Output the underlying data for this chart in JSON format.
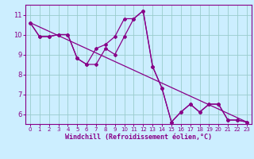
{
  "xlabel": "Windchill (Refroidissement éolien,°C)",
  "bg_color": "#cceeff",
  "line_color": "#880088",
  "grid_color": "#99cccc",
  "xmin": -0.5,
  "xmax": 23.5,
  "ymin": 5.5,
  "ymax": 11.5,
  "yticks": [
    6,
    7,
    8,
    9,
    10,
    11
  ],
  "xticks": [
    0,
    1,
    2,
    3,
    4,
    5,
    6,
    7,
    8,
    9,
    10,
    11,
    12,
    13,
    14,
    15,
    16,
    17,
    18,
    19,
    20,
    21,
    22,
    23
  ],
  "series1_x": [
    0,
    1,
    2,
    3,
    4,
    5,
    6,
    7,
    8,
    9,
    10,
    11,
    12,
    13,
    14,
    15,
    16,
    17,
    18,
    19,
    20,
    21,
    22,
    23
  ],
  "series1_y": [
    10.6,
    9.9,
    9.9,
    10.0,
    10.0,
    8.8,
    8.5,
    9.3,
    9.5,
    9.9,
    10.8,
    10.8,
    11.2,
    8.4,
    7.3,
    5.6,
    6.1,
    6.5,
    6.1,
    6.5,
    6.5,
    5.7,
    5.7,
    5.6
  ],
  "series2_x": [
    0,
    1,
    2,
    3,
    4,
    5,
    6,
    7,
    8,
    9,
    10,
    11,
    12,
    13,
    14,
    15,
    16,
    17,
    18,
    19,
    20,
    21,
    22,
    23
  ],
  "series2_y": [
    10.6,
    9.9,
    9.9,
    10.0,
    10.0,
    8.8,
    8.5,
    8.5,
    9.3,
    9.0,
    9.9,
    10.8,
    11.2,
    8.4,
    7.3,
    5.6,
    6.1,
    6.5,
    6.1,
    6.5,
    6.5,
    5.7,
    5.7,
    5.6
  ],
  "trend_x": [
    0,
    23
  ],
  "trend_y": [
    10.6,
    5.6
  ]
}
